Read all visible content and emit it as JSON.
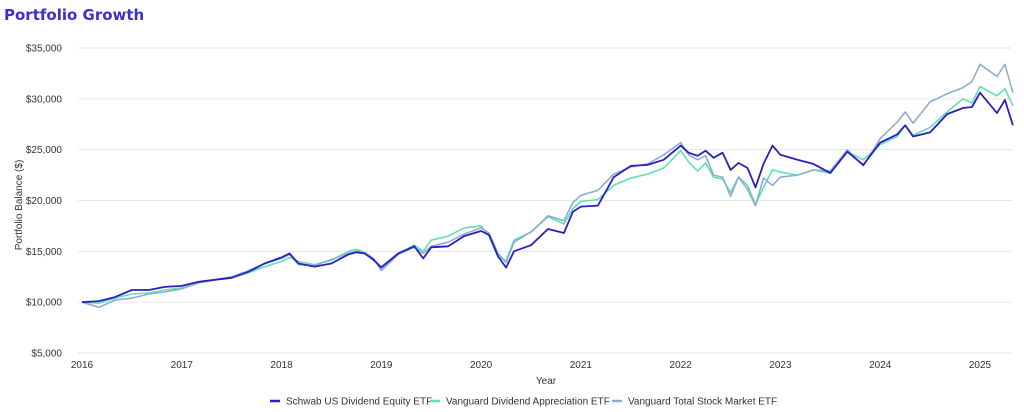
{
  "page": {
    "title": "Portfolio Growth"
  },
  "chart_data": {
    "type": "line",
    "title": "Portfolio Growth",
    "xlabel": "Year",
    "ylabel": "Portfolio Balance ($)",
    "xlim": [
      2016.0,
      2025.33
    ],
    "ylim": [
      5000,
      35000
    ],
    "x_ticks": [
      2016,
      2017,
      2018,
      2019,
      2020,
      2021,
      2022,
      2023,
      2024,
      2025
    ],
    "y_ticks": [
      5000,
      10000,
      15000,
      20000,
      25000,
      30000,
      35000
    ],
    "y_tick_labels": [
      "$5,000",
      "$10,000",
      "$15,000",
      "$20,000",
      "$25,000",
      "$30,000",
      "$35,000"
    ],
    "grid": "horizontal",
    "legend_position": "bottom",
    "series": [
      {
        "name": "Schwab US Dividend Equity ETF",
        "color": "#2b1fbf",
        "x": [
          2016.0,
          2016.17,
          2016.33,
          2016.5,
          2016.67,
          2016.83,
          2017.0,
          2017.17,
          2017.33,
          2017.5,
          2017.67,
          2017.83,
          2018.0,
          2018.08,
          2018.17,
          2018.33,
          2018.5,
          2018.67,
          2018.75,
          2018.83,
          2018.92,
          2019.0,
          2019.17,
          2019.33,
          2019.42,
          2019.5,
          2019.67,
          2019.83,
          2020.0,
          2020.08,
          2020.17,
          2020.25,
          2020.33,
          2020.5,
          2020.67,
          2020.83,
          2020.92,
          2021.0,
          2021.17,
          2021.33,
          2021.5,
          2021.67,
          2021.83,
          2022.0,
          2022.08,
          2022.17,
          2022.25,
          2022.33,
          2022.42,
          2022.5,
          2022.58,
          2022.67,
          2022.75,
          2022.83,
          2022.92,
          2023.0,
          2023.17,
          2023.33,
          2023.5,
          2023.67,
          2023.83,
          2024.0,
          2024.17,
          2024.25,
          2024.33,
          2024.5,
          2024.67,
          2024.83,
          2024.92,
          2025.0,
          2025.17,
          2025.25,
          2025.33
        ],
        "y": [
          10000,
          10100,
          10500,
          11200,
          11200,
          11500,
          11600,
          12000,
          12200,
          12400,
          13000,
          13800,
          14400,
          14800,
          13800,
          13500,
          13800,
          14700,
          14900,
          14800,
          14200,
          13400,
          14800,
          15500,
          14300,
          15400,
          15500,
          16500,
          17000,
          16600,
          14500,
          13400,
          15000,
          15600,
          17200,
          16800,
          18900,
          19400,
          19500,
          22300,
          23400,
          23500,
          24000,
          25400,
          24700,
          24400,
          24900,
          24200,
          24700,
          23000,
          23700,
          23200,
          21300,
          23600,
          25400,
          24500,
          24000,
          23600,
          22700,
          24800,
          23500,
          25700,
          26500,
          27400,
          26300,
          26700,
          28500,
          29100,
          29200,
          30600,
          28600,
          29900,
          27400
        ]
      },
      {
        "name": "Vanguard Dividend Appreciation ETF",
        "color": "#5ee0b4",
        "x": [
          2016.0,
          2016.17,
          2016.33,
          2016.5,
          2016.67,
          2016.83,
          2017.0,
          2017.17,
          2017.33,
          2017.5,
          2017.67,
          2017.83,
          2018.0,
          2018.08,
          2018.17,
          2018.33,
          2018.5,
          2018.67,
          2018.75,
          2018.83,
          2018.92,
          2019.0,
          2019.17,
          2019.33,
          2019.42,
          2019.5,
          2019.67,
          2019.83,
          2020.0,
          2020.08,
          2020.17,
          2020.25,
          2020.33,
          2020.5,
          2020.67,
          2020.83,
          2020.92,
          2021.0,
          2021.17,
          2021.33,
          2021.5,
          2021.67,
          2021.83,
          2022.0,
          2022.08,
          2022.17,
          2022.25,
          2022.33,
          2022.42,
          2022.5,
          2022.58,
          2022.67,
          2022.75,
          2022.83,
          2022.92,
          2023.0,
          2023.17,
          2023.33,
          2023.5,
          2023.67,
          2023.83,
          2024.0,
          2024.17,
          2024.25,
          2024.33,
          2024.5,
          2024.67,
          2024.83,
          2024.92,
          2025.0,
          2025.17,
          2025.25,
          2025.33
        ],
        "y": [
          10000,
          9900,
          10400,
          10800,
          10900,
          11200,
          11400,
          11900,
          12200,
          12400,
          12900,
          13500,
          14000,
          14400,
          14000,
          13700,
          14100,
          15000,
          15200,
          14900,
          14100,
          13500,
          14800,
          15600,
          15000,
          16100,
          16500,
          17300,
          17500,
          16500,
          14400,
          14100,
          16100,
          16900,
          18400,
          17700,
          19200,
          19900,
          20100,
          21500,
          22200,
          22600,
          23200,
          24900,
          23800,
          22900,
          23700,
          22300,
          22100,
          20800,
          22300,
          21500,
          19600,
          21300,
          23000,
          22800,
          22500,
          23000,
          22700,
          24800,
          24000,
          25500,
          26300,
          27400,
          26400,
          27200,
          28700,
          30000,
          29600,
          31200,
          30300,
          31000,
          29300
        ]
      },
      {
        "name": "Vanguard Total Stock Market ETF",
        "color": "#8eaed0",
        "x": [
          2016.0,
          2016.17,
          2016.33,
          2016.5,
          2016.67,
          2016.83,
          2017.0,
          2017.17,
          2017.33,
          2017.5,
          2017.67,
          2017.83,
          2018.0,
          2018.08,
          2018.17,
          2018.33,
          2018.5,
          2018.67,
          2018.75,
          2018.83,
          2018.92,
          2019.0,
          2019.17,
          2019.33,
          2019.42,
          2019.5,
          2019.67,
          2019.83,
          2020.0,
          2020.08,
          2020.17,
          2020.25,
          2020.33,
          2020.5,
          2020.67,
          2020.83,
          2020.92,
          2021.0,
          2021.17,
          2021.33,
          2021.5,
          2021.67,
          2021.83,
          2022.0,
          2022.08,
          2022.17,
          2022.25,
          2022.33,
          2022.42,
          2022.5,
          2022.58,
          2022.67,
          2022.75,
          2022.83,
          2022.92,
          2023.0,
          2023.17,
          2023.33,
          2023.5,
          2023.67,
          2023.83,
          2024.0,
          2024.17,
          2024.25,
          2024.33,
          2024.5,
          2024.67,
          2024.83,
          2024.92,
          2025.0,
          2025.17,
          2025.25,
          2025.33
        ],
        "y": [
          10000,
          9500,
          10200,
          10400,
          10800,
          11000,
          11300,
          11900,
          12200,
          12500,
          13100,
          13800,
          14300,
          14700,
          13700,
          13600,
          14200,
          14800,
          15000,
          14900,
          14300,
          13100,
          14700,
          15400,
          14800,
          15500,
          15900,
          16700,
          17300,
          16800,
          14800,
          13900,
          15900,
          16900,
          18500,
          18000,
          19800,
          20500,
          21000,
          22600,
          23300,
          23600,
          24500,
          25700,
          24500,
          24000,
          24400,
          22500,
          22300,
          20400,
          22300,
          21100,
          19500,
          22200,
          21500,
          22300,
          22500,
          23000,
          22900,
          25000,
          23400,
          26100,
          27700,
          28700,
          27600,
          29700,
          30500,
          31100,
          31700,
          33400,
          32200,
          33400,
          30600
        ]
      }
    ]
  }
}
